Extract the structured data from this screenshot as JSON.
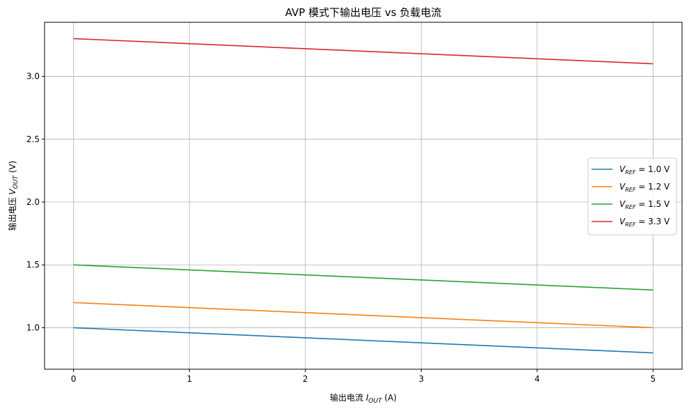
{
  "chart_data": {
    "type": "line",
    "title": "AVP 模式下输出电压 vs 负载电流",
    "xlabel": {
      "prefix": "输出电流 ",
      "var": "I",
      "sub": "OUT",
      "suffix": " (A)"
    },
    "ylabel": {
      "prefix": "输出电压 ",
      "var": "V",
      "sub": "OUT",
      "suffix": " (V)"
    },
    "xlim": [
      -0.25,
      5.25
    ],
    "ylim": [
      0.67,
      3.43
    ],
    "xticks": [
      0,
      1,
      2,
      3,
      4,
      5
    ],
    "xtick_labels": [
      "0",
      "1",
      "2",
      "3",
      "4",
      "5"
    ],
    "yticks": [
      1.0,
      1.5,
      2.0,
      2.5,
      3.0
    ],
    "ytick_labels": [
      "1.0",
      "1.5",
      "2.0",
      "2.5",
      "3.0"
    ],
    "grid": true,
    "legend_position": "center-right",
    "series": [
      {
        "name": "V_REF = 1.0 V",
        "var": "V",
        "sub": "REF",
        "value_text": " = 1.0 V",
        "color": "#1f77b4",
        "x": [
          0,
          5
        ],
        "y": [
          1.0,
          0.8
        ]
      },
      {
        "name": "V_REF = 1.2 V",
        "var": "V",
        "sub": "REF",
        "value_text": " = 1.2 V",
        "color": "#ff7f0e",
        "x": [
          0,
          5
        ],
        "y": [
          1.2,
          1.0
        ]
      },
      {
        "name": "V_REF = 1.5 V",
        "var": "V",
        "sub": "REF",
        "value_text": " = 1.5 V",
        "color": "#2ca02c",
        "x": [
          0,
          5
        ],
        "y": [
          1.5,
          1.3
        ]
      },
      {
        "name": "V_REF = 3.3 V",
        "var": "V",
        "sub": "REF",
        "value_text": " = 3.3 V",
        "color": "#d62728",
        "x": [
          0,
          5
        ],
        "y": [
          3.3,
          3.1
        ]
      }
    ]
  }
}
